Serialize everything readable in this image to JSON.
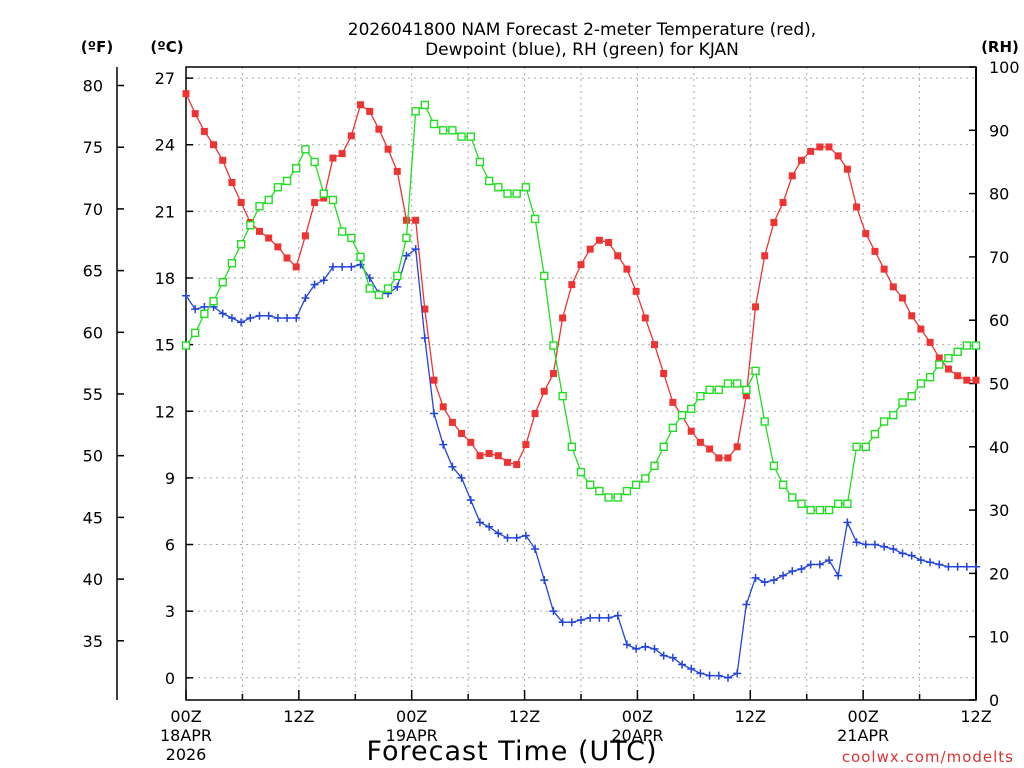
{
  "chart_data": {
    "type": "line",
    "title_line1": "2026041800 NAM Forecast 2-meter Temperature (red),",
    "title_line2": "Dewpoint (blue), RH (green) for KJAN",
    "unit_f": "(ºF)",
    "unit_c": "(ºC)",
    "unit_rh": "(RH)",
    "xlabel": "Forecast Time (UTC)",
    "credit": "coolwx.com/modelts",
    "grid": true,
    "xlim_hours": [
      0,
      84
    ],
    "ylim_c": [
      -1,
      27.5
    ],
    "ylim_rh": [
      0,
      100
    ],
    "f_ticks": [
      35,
      40,
      45,
      50,
      55,
      60,
      65,
      70,
      75,
      80
    ],
    "c_ticks": [
      0,
      3,
      6,
      9,
      12,
      15,
      18,
      21,
      24,
      27
    ],
    "rh_ticks": [
      0,
      10,
      20,
      30,
      40,
      50,
      60,
      70,
      80,
      90,
      100
    ],
    "x_ticks": [
      {
        "hour": 0,
        "label": "00Z",
        "sub1": "18APR",
        "sub2": "2026"
      },
      {
        "hour": 12,
        "label": "12Z",
        "sub1": "",
        "sub2": ""
      },
      {
        "hour": 24,
        "label": "00Z",
        "sub1": "19APR",
        "sub2": ""
      },
      {
        "hour": 36,
        "label": "12Z",
        "sub1": "",
        "sub2": ""
      },
      {
        "hour": 48,
        "label": "00Z",
        "sub1": "20APR",
        "sub2": ""
      },
      {
        "hour": 60,
        "label": "12Z",
        "sub1": "",
        "sub2": ""
      },
      {
        "hour": 72,
        "label": "00Z",
        "sub1": "21APR",
        "sub2": ""
      },
      {
        "hour": 84,
        "label": "12Z",
        "sub1": "",
        "sub2": ""
      }
    ],
    "colors": {
      "temperature": "#ee3333",
      "dewpoint": "#2244dd",
      "rh": "#22dd22"
    },
    "series": [
      {
        "key": "temperature",
        "marker": "square",
        "values": [
          26.3,
          25.4,
          24.6,
          24.0,
          23.3,
          22.3,
          21.4,
          20.5,
          20.1,
          19.8,
          19.4,
          18.9,
          18.5,
          19.9,
          21.4,
          21.6,
          23.4,
          23.6,
          24.4,
          25.8,
          25.5,
          24.7,
          23.8,
          22.8,
          20.6,
          20.6,
          16.6,
          13.4,
          12.2,
          11.5,
          11.0,
          10.6,
          10.0,
          10.1,
          10.0,
          9.7,
          9.6,
          10.5,
          11.9,
          12.9,
          13.7,
          16.2,
          17.7,
          18.6,
          19.3,
          19.7,
          19.6,
          19.0,
          18.4,
          17.4,
          16.2,
          15.0,
          13.7,
          12.4,
          11.8,
          11.1,
          10.6,
          10.3,
          9.9,
          9.9,
          10.4,
          12.7,
          16.7,
          19.0,
          20.5,
          21.4,
          22.6,
          23.3,
          23.7,
          23.9,
          23.9,
          23.5,
          22.9,
          21.2,
          20.0,
          19.2,
          18.4,
          17.6,
          17.1,
          16.3,
          15.7,
          15.1,
          14.4,
          13.9,
          13.6,
          13.4,
          13.4
        ]
      },
      {
        "key": "dewpoint",
        "marker": "plus",
        "values": [
          17.2,
          16.6,
          16.7,
          16.7,
          16.4,
          16.2,
          16.0,
          16.2,
          16.3,
          16.3,
          16.2,
          16.2,
          16.2,
          17.1,
          17.7,
          17.9,
          18.5,
          18.5,
          18.5,
          18.6,
          18.0,
          17.3,
          17.3,
          17.6,
          19.0,
          19.3,
          15.3,
          11.9,
          10.5,
          9.5,
          9.0,
          8.0,
          7.0,
          6.8,
          6.5,
          6.3,
          6.3,
          6.4,
          5.8,
          4.4,
          3.0,
          2.5,
          2.5,
          2.6,
          2.7,
          2.7,
          2.7,
          2.8,
          1.5,
          1.3,
          1.4,
          1.3,
          1.0,
          0.9,
          0.6,
          0.4,
          0.2,
          0.1,
          0.1,
          0.0,
          0.2,
          3.3,
          4.5,
          4.3,
          4.4,
          4.6,
          4.8,
          4.9,
          5.1,
          5.1,
          5.3,
          4.6,
          7.0,
          6.1,
          6.0,
          6.0,
          5.9,
          5.8,
          5.6,
          5.5,
          5.3,
          5.2,
          5.1,
          5.0,
          5.0,
          5.0,
          5.0
        ]
      },
      {
        "key": "rh",
        "marker": "open-square",
        "values": [
          56,
          58,
          61,
          63,
          66,
          69,
          72,
          75,
          78,
          79,
          81,
          82,
          84,
          87,
          85,
          80,
          79,
          74,
          73,
          70,
          65,
          64,
          65,
          67,
          73,
          93,
          94,
          91,
          90,
          90,
          89,
          89,
          85,
          82,
          81,
          80,
          80,
          81,
          76,
          67,
          56,
          48,
          40,
          36,
          34,
          33,
          32,
          32,
          33,
          34,
          35,
          37,
          40,
          43,
          45,
          46,
          48,
          49,
          49,
          50,
          50,
          49,
          52,
          44,
          37,
          34,
          32,
          31,
          30,
          30,
          30,
          31,
          31,
          40,
          40,
          42,
          44,
          45,
          47,
          48,
          50,
          51,
          53,
          54,
          55,
          56,
          56
        ]
      }
    ]
  }
}
